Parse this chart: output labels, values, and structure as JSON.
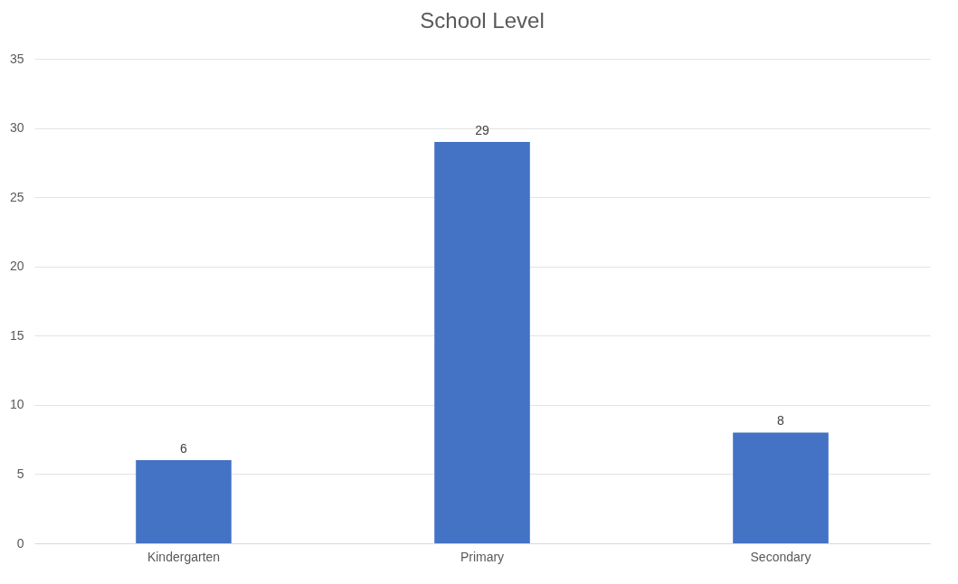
{
  "chart_data": {
    "type": "bar",
    "title": "School Level",
    "categories": [
      "Kindergarten",
      "Primary",
      "Secondary"
    ],
    "values": [
      6,
      29,
      8
    ],
    "color": "#4472c4",
    "ylim": [
      0,
      35
    ],
    "yticks": [
      0,
      5,
      10,
      15,
      20,
      25,
      30,
      35
    ],
    "grid": "y",
    "data_labels": true
  }
}
